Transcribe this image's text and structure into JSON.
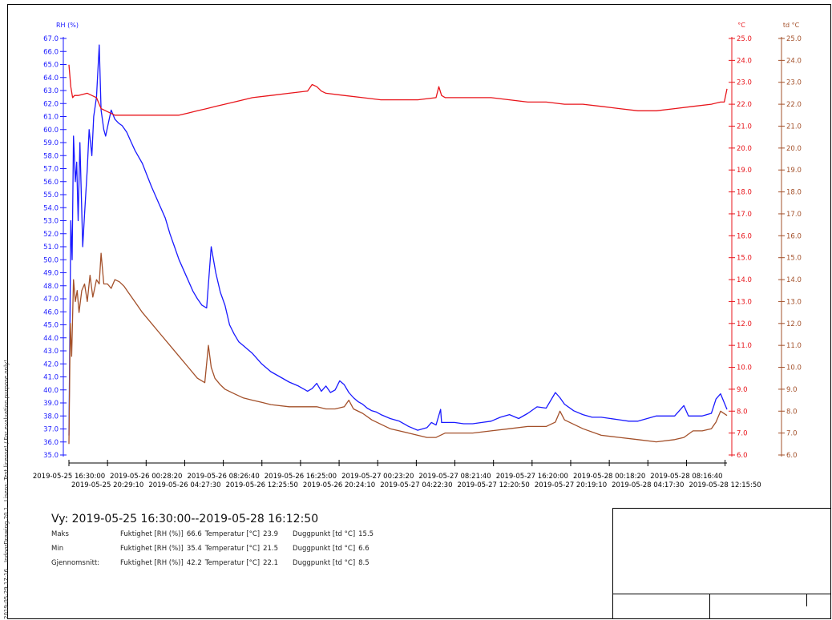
{
  "side_texts": {
    "timestamp": "2019-05-29 17:16",
    "software": "IndoorDrawing 20.1",
    "license": "Lisens: Test license! / For evaluation purpose only!"
  },
  "summary": {
    "view_title": "Vy: 2019-05-25 16:30:00--2019-05-28 16:12:50",
    "rows": [
      {
        "label": "Maks",
        "rh_label": "Fuktighet [RH (%)]",
        "rh": "66.6",
        "t_label": "Temperatur [°C]",
        "t": "23.9",
        "td_label": "Duggpunkt [td °C]",
        "td": "15.5"
      },
      {
        "label": "Min",
        "rh_label": "Fuktighet [RH (%)]",
        "rh": "35.4",
        "t_label": "Temperatur [°C]",
        "t": "21.5",
        "td_label": "Duggpunkt [td °C]",
        "td": "6.6"
      },
      {
        "label": "Gjennomsnitt:",
        "rh_label": "Fuktighet [RH (%)]",
        "rh": "42.2",
        "t_label": "Temperatur [°C]",
        "t": "22.1",
        "td_label": "Duggpunkt [td °C]",
        "td": "8.5"
      }
    ]
  },
  "chart_data": {
    "type": "line",
    "xaxis": {
      "tick_labels_top": [
        "2019-05-25 16:30:00",
        "2019-05-26 00:28:20",
        "2019-05-26 08:26:40",
        "2019-05-26 16:25:00",
        "2019-05-27 00:23:20",
        "2019-05-27 08:21:40",
        "2019-05-27 16:20:00",
        "2019-05-28 00:18:20",
        "2019-05-28 08:16:40"
      ],
      "tick_labels_bottom": [
        "2019-05-25 20:29:10",
        "2019-05-26 04:27:30",
        "2019-05-26 12:25:50",
        "2019-05-26 20:24:10",
        "2019-05-27 04:22:30",
        "2019-05-27 12:20:50",
        "2019-05-27 20:19:10",
        "2019-05-28 04:17:30",
        "2019-05-28 12:15:50"
      ],
      "range_hours": [
        0,
        71.7
      ]
    },
    "axes": {
      "rh": {
        "label": "RH (%)",
        "min": 35.0,
        "max": 67.0,
        "step": 1.0,
        "color": "#1a1aff"
      },
      "temp": {
        "label": "°C",
        "min": 6.0,
        "max": 25.0,
        "step": 1.0,
        "color": "#e8151b"
      },
      "td": {
        "label": "td °C",
        "min": 6.0,
        "max": 25.0,
        "step": 1.0,
        "color": "#a3502a"
      }
    },
    "series": [
      {
        "key": "rh",
        "axis": "rh",
        "color": "#1a1aff",
        "x": [
          0,
          0.1,
          0.2,
          0.35,
          0.5,
          0.7,
          0.85,
          1.0,
          1.2,
          1.5,
          1.7,
          2.0,
          2.2,
          2.5,
          2.7,
          3.0,
          3.3,
          3.5,
          3.8,
          4.0,
          4.3,
          4.6,
          5.0,
          5.4,
          5.8,
          6.3,
          6.8,
          7.2,
          7.6,
          8.0,
          8.5,
          9.0,
          9.5,
          10.0,
          10.5,
          11.0,
          11.5,
          12.0,
          12.5,
          13.0,
          13.5,
          14.0,
          14.5,
          15.0,
          15.5,
          16.0,
          16.5,
          17.0,
          17.5,
          18.0,
          18.5,
          19.0,
          20.0,
          21.0,
          22.0,
          23.0,
          24.0,
          25.0,
          26.0,
          26.5,
          27.0,
          27.5,
          28.0,
          28.5,
          29.0,
          29.5,
          30.0,
          30.5,
          31.0,
          31.5,
          32.0,
          32.5,
          33.0,
          33.5,
          34.0,
          35.0,
          36.0,
          37.0,
          38.0,
          39.0,
          39.5,
          40.0,
          40.5,
          40.6,
          41.0,
          42.0,
          43.0,
          44.0,
          45.0,
          46.0,
          47.0,
          48.0,
          49.0,
          50.0,
          51.0,
          52.0,
          53.0,
          53.5,
          54.0,
          55.0,
          56.0,
          57.0,
          58.0,
          59.0,
          60.0,
          61.0,
          62.0,
          63.0,
          64.0,
          65.0,
          66.0,
          67.0,
          67.5,
          68.0,
          69.0,
          70.0,
          70.5,
          71.0,
          71.7
        ],
        "y": [
          36.5,
          44,
          53,
          50,
          59.5,
          56,
          57.5,
          53,
          59,
          51,
          53.5,
          57,
          60,
          58,
          61,
          62.5,
          66.5,
          61.5,
          60,
          59.5,
          60.5,
          61.5,
          60.8,
          60.5,
          60.3,
          59.8,
          59,
          58.4,
          57.9,
          57.4,
          56.5,
          55.6,
          54.8,
          54.0,
          53.2,
          52.0,
          51.0,
          50.0,
          49.2,
          48.4,
          47.6,
          47.0,
          46.5,
          46.3,
          51.0,
          49.0,
          47.5,
          46.5,
          45.0,
          44.3,
          43.7,
          43.4,
          42.8,
          42.0,
          41.4,
          41.0,
          40.6,
          40.3,
          39.9,
          40.1,
          40.5,
          39.9,
          40.3,
          39.8,
          40.0,
          40.7,
          40.4,
          39.8,
          39.4,
          39.1,
          38.9,
          38.6,
          38.4,
          38.3,
          38.1,
          37.8,
          37.6,
          37.2,
          36.9,
          37.1,
          37.5,
          37.3,
          38.5,
          37.5,
          37.5,
          37.5,
          37.4,
          37.4,
          37.5,
          37.6,
          37.9,
          38.1,
          37.8,
          38.2,
          38.7,
          38.6,
          39.8,
          39.4,
          38.9,
          38.4,
          38.1,
          37.9,
          37.9,
          37.8,
          37.7,
          37.6,
          37.6,
          37.8,
          38.0,
          38.0,
          38.0,
          38.8,
          38.0,
          38.0,
          38.0,
          38.2,
          39.3,
          39.7,
          38.5
        ]
      },
      {
        "key": "temp",
        "axis": "temp",
        "color": "#e8151b",
        "x": [
          0,
          0.2,
          0.4,
          0.6,
          1.0,
          2.0,
          3.0,
          3.5,
          4.0,
          5.0,
          6.0,
          7.0,
          8.0,
          10.0,
          12.0,
          13.0,
          14.0,
          15.0,
          16.0,
          18.0,
          20.0,
          22.0,
          24.0,
          26.0,
          26.5,
          27.0,
          27.5,
          28.0,
          30.0,
          32.0,
          34.0,
          36.0,
          38.0,
          40.0,
          40.3,
          40.6,
          41.0,
          42.0,
          44.0,
          46.0,
          48.0,
          50.0,
          52.0,
          54.0,
          56.0,
          58.0,
          60.0,
          62.0,
          64.0,
          66.0,
          68.0,
          70.0,
          71.0,
          71.4,
          71.7
        ],
        "y": [
          23.8,
          22.8,
          22.3,
          22.4,
          22.4,
          22.5,
          22.3,
          21.8,
          21.7,
          21.5,
          21.5,
          21.5,
          21.5,
          21.5,
          21.5,
          21.6,
          21.7,
          21.8,
          21.9,
          22.1,
          22.3,
          22.4,
          22.5,
          22.6,
          22.9,
          22.8,
          22.6,
          22.5,
          22.4,
          22.3,
          22.2,
          22.2,
          22.2,
          22.3,
          22.8,
          22.4,
          22.3,
          22.3,
          22.3,
          22.3,
          22.2,
          22.1,
          22.1,
          22.0,
          22.0,
          21.9,
          21.8,
          21.7,
          21.7,
          21.8,
          21.9,
          22.0,
          22.1,
          22.1,
          22.7
        ]
      },
      {
        "key": "td",
        "axis": "td",
        "color": "#a3502a",
        "x": [
          0,
          0.15,
          0.3,
          0.5,
          0.7,
          0.9,
          1.1,
          1.4,
          1.7,
          2.0,
          2.3,
          2.6,
          3.0,
          3.3,
          3.5,
          3.8,
          4.2,
          4.6,
          5.0,
          5.5,
          6.0,
          6.5,
          7.0,
          7.5,
          8.0,
          9.0,
          10.0,
          11.0,
          12.0,
          13.0,
          14.0,
          14.8,
          15.2,
          15.5,
          15.9,
          16.5,
          17.0,
          18.0,
          19.0,
          20.0,
          21.0,
          22.0,
          24.0,
          26.0,
          27.0,
          28.0,
          29.0,
          30.0,
          30.5,
          31.0,
          32.0,
          33.0,
          34.0,
          35.0,
          36.0,
          37.0,
          38.0,
          39.0,
          40.0,
          41.0,
          42.0,
          44.0,
          46.0,
          48.0,
          50.0,
          52.0,
          53.0,
          53.5,
          54.0,
          56.0,
          58.0,
          60.0,
          62.0,
          64.0,
          66.0,
          67.0,
          68.0,
          69.0,
          70.0,
          70.5,
          71.0,
          71.7
        ],
        "y": [
          6.5,
          12.0,
          10.5,
          14.0,
          13.0,
          13.5,
          12.5,
          13.5,
          13.8,
          13.0,
          14.2,
          13.2,
          14.0,
          13.8,
          15.2,
          13.8,
          13.8,
          13.6,
          14.0,
          13.9,
          13.7,
          13.4,
          13.1,
          12.8,
          12.5,
          12.0,
          11.5,
          11.0,
          10.5,
          10.0,
          9.5,
          9.3,
          11.0,
          10.0,
          9.5,
          9.2,
          9.0,
          8.8,
          8.6,
          8.5,
          8.4,
          8.3,
          8.2,
          8.2,
          8.2,
          8.1,
          8.1,
          8.2,
          8.5,
          8.1,
          7.9,
          7.6,
          7.4,
          7.2,
          7.1,
          7.0,
          6.9,
          6.8,
          6.8,
          7.0,
          7.0,
          7.0,
          7.1,
          7.2,
          7.3,
          7.3,
          7.5,
          8.0,
          7.6,
          7.2,
          6.9,
          6.8,
          6.7,
          6.6,
          6.7,
          6.8,
          7.1,
          7.1,
          7.2,
          7.5,
          8.0,
          7.8
        ]
      }
    ]
  }
}
